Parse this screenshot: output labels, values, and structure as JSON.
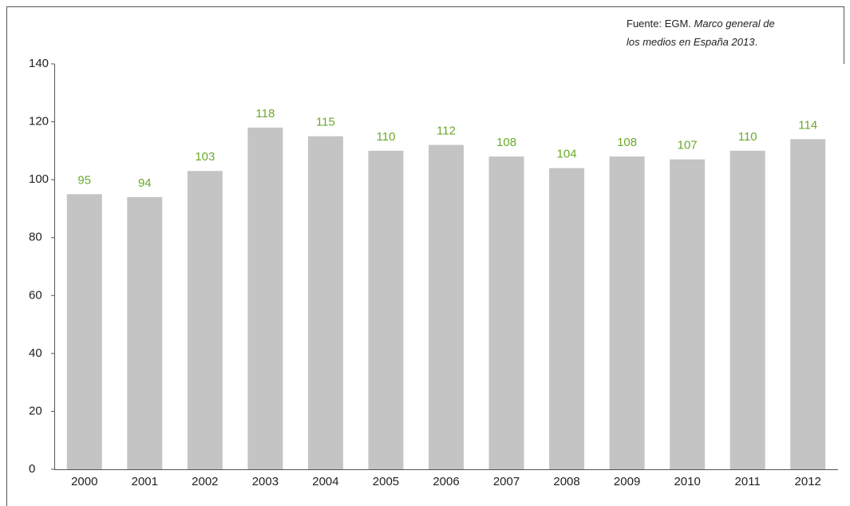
{
  "source": {
    "line1": [
      "Fuente: EGM. ",
      "Marco general de"
    ],
    "line2": [
      "los medios en España 2013",
      "."
    ]
  },
  "chart_data": {
    "type": "bar",
    "categories": [
      "2000",
      "2001",
      "2002",
      "2003",
      "2004",
      "2005",
      "2006",
      "2007",
      "2008",
      "2009",
      "2010",
      "2011",
      "2012"
    ],
    "values": [
      95,
      94,
      103,
      118,
      115,
      110,
      112,
      108,
      104,
      108,
      107,
      110,
      114
    ],
    "color": "#c4c4c4",
    "label_color": "#6aaa2a",
    "ylim": [
      0,
      140
    ],
    "yticks": [
      0,
      20,
      40,
      60,
      80,
      100,
      120,
      140
    ],
    "grid": false
  }
}
